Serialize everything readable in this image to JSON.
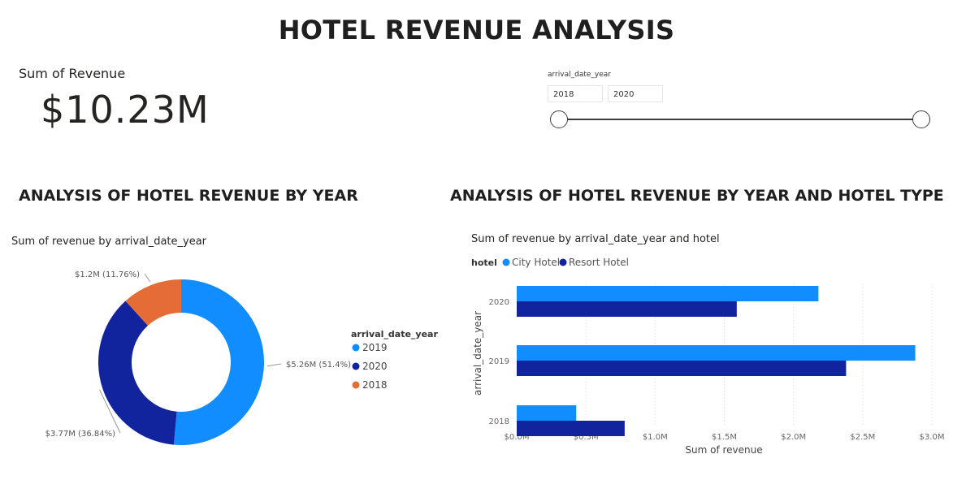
{
  "page": {
    "title": "HOTEL REVENUE ANALYSIS"
  },
  "kpi": {
    "label": "Sum of Revenue",
    "value": "$10.23M"
  },
  "slicer": {
    "field": "arrival_date_year",
    "from": "2018",
    "to": "2020"
  },
  "sections": {
    "left_title": "ANALYSIS OF HOTEL REVENUE BY YEAR",
    "right_title": "ANALYSIS OF HOTEL REVENUE BY YEAR AND HOTEL TYPE"
  },
  "chart_data": [
    {
      "type": "pie",
      "donut": true,
      "title": "Sum of revenue by arrival_date_year",
      "legend_title": "arrival_date_year",
      "legend_position": "right",
      "slices": [
        {
          "label": "2019",
          "value": 5.26,
          "percent": 51.4,
          "data_label": "$5.26M (51.4%)",
          "color": "#118DFF"
        },
        {
          "label": "2020",
          "value": 3.77,
          "percent": 36.84,
          "data_label": "$3.77M (36.84%)",
          "color": "#12239E"
        },
        {
          "label": "2018",
          "value": 1.2,
          "percent": 11.76,
          "data_label": "$1.2M (11.76%)",
          "color": "#E66C37"
        }
      ]
    },
    {
      "type": "bar",
      "orientation": "horizontal",
      "title": "Sum of revenue by arrival_date_year and hotel",
      "legend_title": "hotel",
      "legend_position": "top-left",
      "categories": [
        "2020",
        "2019",
        "2018"
      ],
      "series": [
        {
          "name": "City Hotel",
          "color": "#118DFF",
          "values": [
            2.18,
            2.88,
            0.43
          ]
        },
        {
          "name": "Resort Hotel",
          "color": "#12239E",
          "values": [
            1.59,
            2.38,
            0.78
          ]
        }
      ],
      "xlabel": "Sum of revenue",
      "ylabel": "arrival_date_year",
      "xlim": [
        0,
        3.0
      ],
      "xticks": [
        "$0.0M",
        "$0.5M",
        "$1.0M",
        "$1.5M",
        "$2.0M",
        "$2.5M",
        "$3.0M"
      ],
      "grid": true
    }
  ]
}
